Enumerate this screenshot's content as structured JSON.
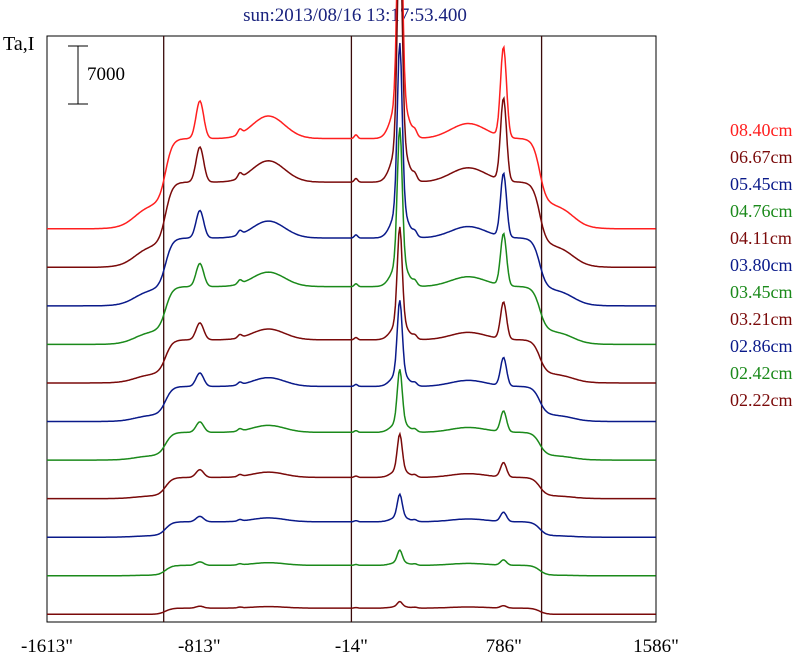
{
  "chart_data": {
    "type": "line",
    "title": "sun:2013/08/16 13:17:53.400",
    "ylabel": "Ta,I",
    "scale_bar_label": "7000",
    "x_tick_labels": [
      "-1613\"",
      "-813\"",
      "-14\"",
      "786\"",
      "1586\""
    ],
    "x_ticks": [
      -1613,
      -813,
      -14,
      786,
      1586
    ],
    "xlim": [
      -1613,
      1586
    ],
    "vertical_lines": [
      -1000,
      -14,
      985
    ],
    "grid": false,
    "legend_placement": "right",
    "series": [
      {
        "name": "08.40cm",
        "color": "#ff1f1f",
        "baseline": 27000,
        "amplitude": 19500
      },
      {
        "name": "06.67cm",
        "color": "#7a0a0a",
        "baseline": 24000,
        "amplitude": 19500
      },
      {
        "name": "05.45cm",
        "color": "#0a1a8a",
        "baseline": 21000,
        "amplitude": 16500
      },
      {
        "name": "04.76cm",
        "color": "#1b8a1b",
        "baseline": 18000,
        "amplitude": 15000
      },
      {
        "name": "04.11cm",
        "color": "#7a0a0a",
        "baseline": 15000,
        "amplitude": 12000
      },
      {
        "name": "03.80cm",
        "color": "#0a1a8a",
        "baseline": 12000,
        "amplitude": 10500
      },
      {
        "name": "03.45cm",
        "color": "#1b8a1b",
        "baseline": 9000,
        "amplitude": 9000
      },
      {
        "name": "03.21cm",
        "color": "#7a0a0a",
        "baseline": 6000,
        "amplitude": 7500
      },
      {
        "name": "02.86cm",
        "color": "#0a1a8a",
        "baseline": 3000,
        "amplitude": 6000
      },
      {
        "name": "02.42cm",
        "color": "#1b8a1b",
        "baseline": 0,
        "amplitude": 4500
      },
      {
        "name": "02.22cm",
        "color": "#7a0a0a",
        "baseline": -3000,
        "amplitude": 3000
      }
    ],
    "ylim": [
      -3600,
      42000
    ]
  }
}
